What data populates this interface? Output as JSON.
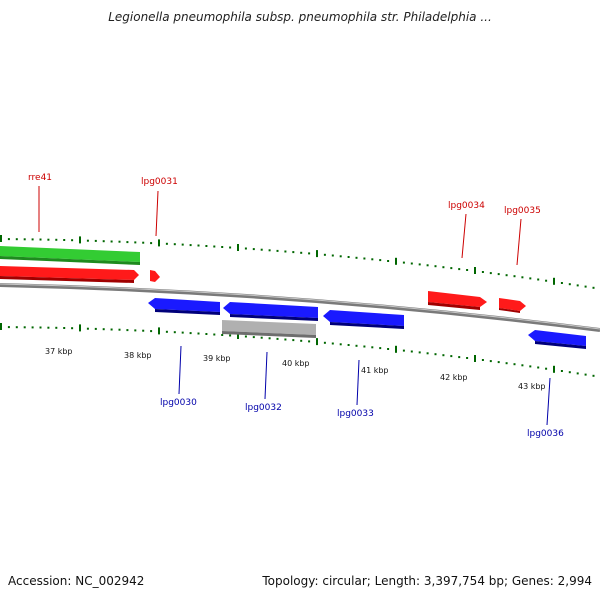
{
  "title": "Legionella pneumophila subsp. pneumophila str. Philadelphia ...",
  "footer": {
    "accession": "Accession: NC_002942",
    "topology": "Topology: circular; Length: 3,397,754 bp; Genes: 2,994"
  },
  "colors": {
    "forward_gene": "#ff0000",
    "reverse_gene": "#0000ff",
    "rna_gene": "#33cc33",
    "pseudo_gene": "#b0b0b0",
    "backbone": "#808080",
    "tick": "#006600",
    "forward_label": "#cc0000",
    "reverse_label": "#0000aa"
  },
  "genome_map": {
    "scale_labels": [
      "37 kbp",
      "38 kbp",
      "39 kbp",
      "40 kbp",
      "41 kbp",
      "42 kbp",
      "43 kbp"
    ],
    "forward_labels": [
      "rre41",
      "lpg0031",
      "lpg0034",
      "lpg0035"
    ],
    "reverse_labels": [
      "lpg0030",
      "lpg0032",
      "lpg0033",
      "lpg0036"
    ]
  }
}
